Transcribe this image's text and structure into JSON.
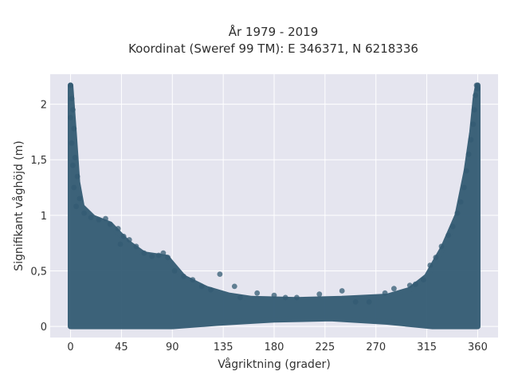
{
  "chart_data": {
    "type": "scatter",
    "title_line1": "År 1979 - 2019",
    "title_line2": "Koordinat (Sweref 99 TM): E 346371, N 6218336",
    "xlabel": "Vågriktning (grader)",
    "ylabel": "Signifikant våghöjd (m)",
    "xlim": [
      -18,
      378
    ],
    "ylim": [
      -0.1,
      2.27
    ],
    "xticks": [
      0,
      45,
      90,
      135,
      180,
      225,
      270,
      315,
      360
    ],
    "xtick_labels": [
      "0",
      "45",
      "90",
      "135",
      "180",
      "225",
      "270",
      "315",
      "360"
    ],
    "yticks": [
      0,
      0.5,
      1,
      1.5,
      2
    ],
    "ytick_labels": [
      "0",
      "0,5",
      "1",
      "1,5",
      "2"
    ],
    "grid": true,
    "legend": "none",
    "marker_color": "#335b73",
    "background_color": "#e5e5ef",
    "points": [
      {
        "x": 0,
        "y": 2.17
      },
      {
        "x": 1,
        "y": 2.05
      },
      {
        "x": 2,
        "y": 1.95
      },
      {
        "x": 0,
        "y": 1.88
      },
      {
        "x": 3,
        "y": 1.78
      },
      {
        "x": 1,
        "y": 1.65
      },
      {
        "x": 4,
        "y": 1.52
      },
      {
        "x": 2,
        "y": 1.45
      },
      {
        "x": 6,
        "y": 1.35
      },
      {
        "x": 3,
        "y": 1.25
      },
      {
        "x": 8,
        "y": 1.15
      },
      {
        "x": 5,
        "y": 1.08
      },
      {
        "x": 12,
        "y": 1.02
      },
      {
        "x": 18,
        "y": 0.98
      },
      {
        "x": 25,
        "y": 0.96
      },
      {
        "x": 31,
        "y": 0.97
      },
      {
        "x": 35,
        "y": 0.92
      },
      {
        "x": 42,
        "y": 0.88
      },
      {
        "x": 47,
        "y": 0.81
      },
      {
        "x": 52,
        "y": 0.78
      },
      {
        "x": 44,
        "y": 0.74
      },
      {
        "x": 58,
        "y": 0.72
      },
      {
        "x": 65,
        "y": 0.66
      },
      {
        "x": 72,
        "y": 0.63
      },
      {
        "x": 78,
        "y": 0.64
      },
      {
        "x": 82,
        "y": 0.66
      },
      {
        "x": 86,
        "y": 0.62
      },
      {
        "x": 92,
        "y": 0.5
      },
      {
        "x": 100,
        "y": 0.45
      },
      {
        "x": 108,
        "y": 0.42
      },
      {
        "x": 116,
        "y": 0.36
      },
      {
        "x": 124,
        "y": 0.33
      },
      {
        "x": 132,
        "y": 0.47
      },
      {
        "x": 145,
        "y": 0.36
      },
      {
        "x": 150,
        "y": 0.26
      },
      {
        "x": 165,
        "y": 0.3
      },
      {
        "x": 180,
        "y": 0.28
      },
      {
        "x": 190,
        "y": 0.26
      },
      {
        "x": 200,
        "y": 0.26
      },
      {
        "x": 220,
        "y": 0.29
      },
      {
        "x": 240,
        "y": 0.32
      },
      {
        "x": 252,
        "y": 0.22
      },
      {
        "x": 264,
        "y": 0.22
      },
      {
        "x": 278,
        "y": 0.3
      },
      {
        "x": 286,
        "y": 0.34
      },
      {
        "x": 300,
        "y": 0.37
      },
      {
        "x": 305,
        "y": 0.38
      },
      {
        "x": 312,
        "y": 0.42
      },
      {
        "x": 318,
        "y": 0.55
      },
      {
        "x": 323,
        "y": 0.62
      },
      {
        "x": 328,
        "y": 0.72
      },
      {
        "x": 334,
        "y": 0.82
      },
      {
        "x": 338,
        "y": 0.9
      },
      {
        "x": 342,
        "y": 1.02
      },
      {
        "x": 345,
        "y": 1.12
      },
      {
        "x": 348,
        "y": 1.25
      },
      {
        "x": 350,
        "y": 1.4
      },
      {
        "x": 352,
        "y": 1.55
      },
      {
        "x": 354,
        "y": 1.68
      },
      {
        "x": 356,
        "y": 1.82
      },
      {
        "x": 357,
        "y": 1.95
      },
      {
        "x": 358,
        "y": 2.08
      },
      {
        "x": 359,
        "y": 2.17
      },
      {
        "x": 360,
        "y": 2.14
      }
    ],
    "upper_envelope": [
      {
        "x": 0,
        "y": 2.17
      },
      {
        "x": 3,
        "y": 1.75
      },
      {
        "x": 6,
        "y": 1.3
      },
      {
        "x": 10,
        "y": 1.08
      },
      {
        "x": 20,
        "y": 0.98
      },
      {
        "x": 35,
        "y": 0.92
      },
      {
        "x": 50,
        "y": 0.76
      },
      {
        "x": 65,
        "y": 0.65
      },
      {
        "x": 85,
        "y": 0.62
      },
      {
        "x": 100,
        "y": 0.44
      },
      {
        "x": 120,
        "y": 0.34
      },
      {
        "x": 140,
        "y": 0.28
      },
      {
        "x": 160,
        "y": 0.25
      },
      {
        "x": 200,
        "y": 0.24
      },
      {
        "x": 240,
        "y": 0.25
      },
      {
        "x": 280,
        "y": 0.27
      },
      {
        "x": 300,
        "y": 0.33
      },
      {
        "x": 315,
        "y": 0.45
      },
      {
        "x": 330,
        "y": 0.72
      },
      {
        "x": 342,
        "y": 1.0
      },
      {
        "x": 350,
        "y": 1.4
      },
      {
        "x": 355,
        "y": 1.75
      },
      {
        "x": 358,
        "y": 2.05
      },
      {
        "x": 360,
        "y": 2.17
      }
    ],
    "lower_envelope": [
      {
        "x": 0,
        "y": 0.0
      },
      {
        "x": 90,
        "y": 0.0
      },
      {
        "x": 130,
        "y": 0.03
      },
      {
        "x": 180,
        "y": 0.06
      },
      {
        "x": 230,
        "y": 0.07
      },
      {
        "x": 280,
        "y": 0.04
      },
      {
        "x": 320,
        "y": 0.0
      },
      {
        "x": 360,
        "y": 0.0
      }
    ]
  }
}
